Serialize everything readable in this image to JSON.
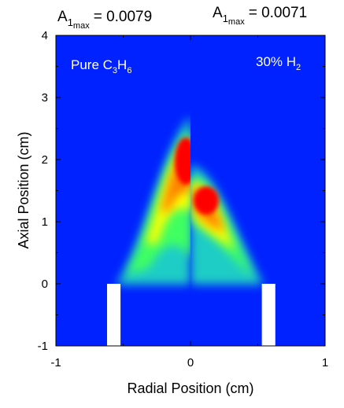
{
  "chart_data": {
    "type": "heatmap",
    "xlabel": "Radial Position (cm)",
    "ylabel": "Axial Position (cm)",
    "xlim": [
      -1,
      1
    ],
    "ylim": [
      -1,
      4
    ],
    "x_ticks": [
      "-1",
      "0",
      "1"
    ],
    "y_ticks": [
      "-1",
      "0",
      "1",
      "2",
      "3",
      "4"
    ],
    "colormap": [
      "#0000ff",
      "#00ff80",
      "#ffff00",
      "#ff0000"
    ],
    "background_color": "#0022ff",
    "grid": false,
    "panels": [
      {
        "label_text": "Pure C",
        "label_sub1": "3",
        "label_mid": "H",
        "label_sub2": "6",
        "max_prefix": "A",
        "max_index": "1",
        "max_sub": "max",
        "max_value_text": "= 0.0079",
        "max_value": 0.0079,
        "peak": {
          "r": 0.0,
          "z": 1.8
        },
        "flame_tip_z": 2.75,
        "side": "left"
      },
      {
        "label_text": "30% H",
        "label_sub1": "2",
        "max_prefix": "A",
        "max_index": "1",
        "max_sub": "max",
        "max_value_text": "= 0.0071",
        "max_value": 0.0071,
        "peak": {
          "r": 0.1,
          "z": 1.4
        },
        "flame_tip_z": 1.95,
        "side": "right"
      }
    ],
    "burner_walls": [
      {
        "r_min": -0.62,
        "r_max": -0.52,
        "z_min": -1,
        "z_max": 0
      },
      {
        "r_min": 0.53,
        "r_max": 0.63,
        "z_min": -1,
        "z_max": 0
      }
    ]
  }
}
